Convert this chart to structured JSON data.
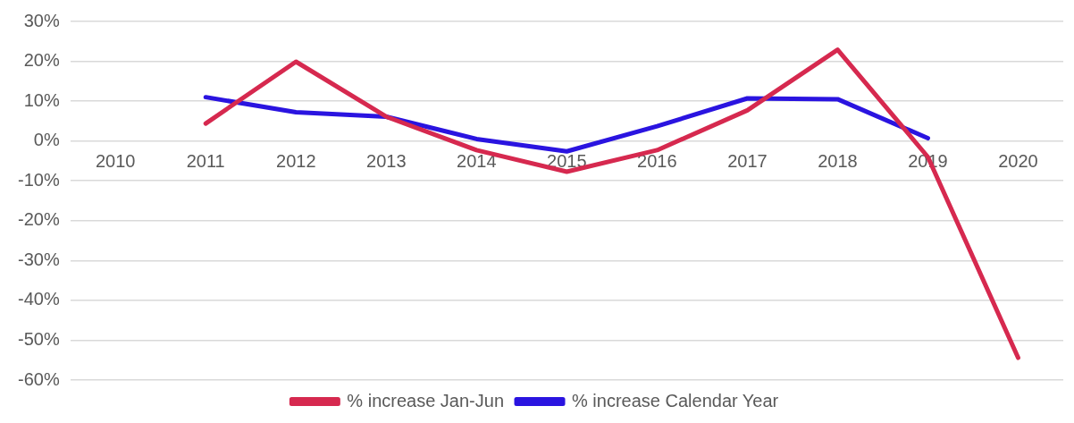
{
  "chart_data": {
    "type": "line",
    "categories": [
      "2010",
      "2011",
      "2012",
      "2013",
      "2014",
      "2015",
      "2016",
      "2017",
      "2018",
      "2019",
      "2020"
    ],
    "series": [
      {
        "name": "% increase Jan-Jun",
        "color": "#d6294f",
        "values": [
          null,
          4.4,
          19.9,
          6.1,
          -2.3,
          -7.7,
          -2.3,
          7.7,
          22.9,
          -4.0,
          -54.4
        ]
      },
      {
        "name": "% increase Calendar Year",
        "color": "#2a14e0",
        "values": [
          null,
          11.0,
          7.2,
          6.1,
          0.5,
          -2.6,
          3.7,
          10.7,
          10.5,
          0.7,
          null
        ]
      }
    ],
    "ylim": [
      -60,
      30
    ],
    "yticks": [
      {
        "value": -60,
        "label": "-60%"
      },
      {
        "value": -50,
        "label": "-50%"
      },
      {
        "value": -40,
        "label": "-40%"
      },
      {
        "value": -30,
        "label": "-30%"
      },
      {
        "value": -20,
        "label": "-20%"
      },
      {
        "value": -10,
        "label": "-10%"
      },
      {
        "value": 0,
        "label": "0%"
      },
      {
        "value": 10,
        "label": "10%"
      },
      {
        "value": 20,
        "label": "20%"
      },
      {
        "value": 30,
        "label": "30%"
      }
    ],
    "grid": "y",
    "legend": "bottom",
    "marker": "none",
    "line_style": "solid"
  }
}
